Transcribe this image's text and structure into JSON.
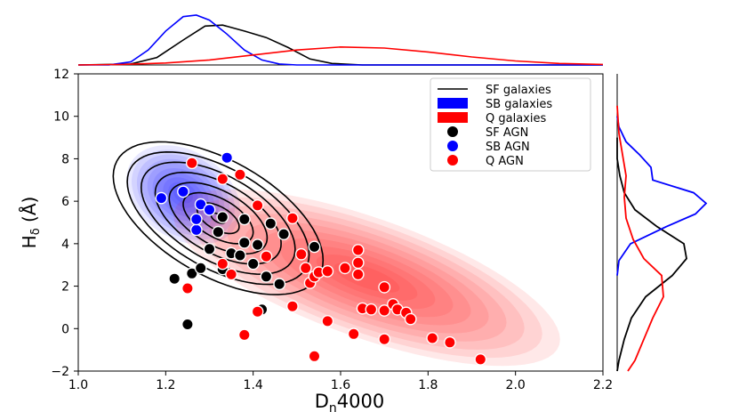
{
  "chart_data": {
    "type": "scatter",
    "xlabel": "D",
    "xlabel_sub": "n",
    "xlabel_tail": "4000",
    "ylabel": "H",
    "ylabel_sub": "δ",
    "ylabel_tail": " (Å)",
    "xlim": [
      1.0,
      2.2
    ],
    "ylim": [
      -2,
      12
    ],
    "xticks": [
      1.0,
      1.2,
      1.4,
      1.6,
      1.8,
      2.0,
      2.2
    ],
    "xtick_labels": [
      "1.0",
      "1.2",
      "1.4",
      "1.6",
      "1.8",
      "2.0",
      "2.2"
    ],
    "yticks": [
      -2,
      0,
      2,
      4,
      6,
      8,
      10,
      12
    ],
    "ytick_labels": [
      "−2",
      "0",
      "2",
      "4",
      "6",
      "8",
      "10",
      "12"
    ],
    "legend_position": "top-right",
    "legend": [
      {
        "label": "SF galaxies",
        "kind": "line",
        "color": "#000000"
      },
      {
        "label": "SB galaxies",
        "kind": "patch",
        "color": "#0000ff"
      },
      {
        "label": "Q galaxies",
        "kind": "patch",
        "color": "#ff0000"
      },
      {
        "label": "SF AGN",
        "kind": "marker",
        "color": "#000000"
      },
      {
        "label": "SB AGN",
        "kind": "marker",
        "color": "#0000ff"
      },
      {
        "label": "Q AGN",
        "kind": "marker",
        "color": "#ff0000"
      }
    ],
    "colors": {
      "SF": "#000000",
      "SB": "#0000ff",
      "Q": "#ff0000"
    },
    "density_regions": [
      {
        "name": "SB galaxies",
        "color": "#0000ff",
        "center": [
          1.24,
          6.3
        ],
        "sigma": [
          0.05,
          0.9
        ],
        "rho": -0.3
      },
      {
        "name": "Q galaxies",
        "color": "#ff0000",
        "center": [
          1.66,
          2.4
        ],
        "sigma": [
          0.17,
          1.6
        ],
        "rho": -0.7
      }
    ],
    "sf_contours": {
      "center": [
        1.32,
        5.2
      ],
      "sigma": [
        0.08,
        1.2
      ],
      "rho": -0.55,
      "levels": [
        0.6,
        1.0,
        1.4,
        1.8,
        2.2,
        2.6,
        3.0,
        3.4
      ]
    },
    "series": [
      {
        "name": "SF AGN",
        "color": "#000000",
        "points": [
          [
            1.25,
            0.2
          ],
          [
            1.22,
            2.35
          ],
          [
            1.26,
            2.6
          ],
          [
            1.28,
            2.85
          ],
          [
            1.3,
            3.75
          ],
          [
            1.32,
            4.55
          ],
          [
            1.33,
            5.25
          ],
          [
            1.35,
            3.55
          ],
          [
            1.37,
            3.45
          ],
          [
            1.38,
            4.05
          ],
          [
            1.4,
            3.05
          ],
          [
            1.41,
            3.95
          ],
          [
            1.43,
            2.45
          ],
          [
            1.44,
            4.95
          ],
          [
            1.47,
            4.45
          ],
          [
            1.38,
            5.15
          ],
          [
            1.46,
            2.1
          ],
          [
            1.54,
            3.85
          ],
          [
            1.42,
            0.9
          ],
          [
            1.33,
            2.8
          ]
        ]
      },
      {
        "name": "SB AGN",
        "color": "#0000ff",
        "points": [
          [
            1.19,
            6.15
          ],
          [
            1.24,
            6.45
          ],
          [
            1.27,
            4.65
          ],
          [
            1.28,
            5.85
          ],
          [
            1.3,
            5.6
          ],
          [
            1.27,
            5.15
          ],
          [
            1.34,
            8.05
          ]
        ]
      },
      {
        "name": "Q AGN",
        "color": "#ff0000",
        "points": [
          [
            1.26,
            7.8
          ],
          [
            1.33,
            7.05
          ],
          [
            1.37,
            7.25
          ],
          [
            1.41,
            5.8
          ],
          [
            1.49,
            5.2
          ],
          [
            1.33,
            3.05
          ],
          [
            1.35,
            2.55
          ],
          [
            1.43,
            3.4
          ],
          [
            1.25,
            1.9
          ],
          [
            1.41,
            0.8
          ],
          [
            1.38,
            -0.3
          ],
          [
            1.49,
            1.05
          ],
          [
            1.51,
            3.5
          ],
          [
            1.52,
            2.85
          ],
          [
            1.53,
            2.15
          ],
          [
            1.54,
            2.45
          ],
          [
            1.55,
            2.65
          ],
          [
            1.57,
            0.35
          ],
          [
            1.57,
            2.7
          ],
          [
            1.61,
            2.85
          ],
          [
            1.64,
            3.7
          ],
          [
            1.64,
            3.1
          ],
          [
            1.64,
            2.55
          ],
          [
            1.63,
            -0.25
          ],
          [
            1.65,
            0.95
          ],
          [
            1.67,
            0.9
          ],
          [
            1.7,
            1.95
          ],
          [
            1.7,
            -0.5
          ],
          [
            1.7,
            0.85
          ],
          [
            1.72,
            1.15
          ],
          [
            1.73,
            0.9
          ],
          [
            1.75,
            0.75
          ],
          [
            1.76,
            0.45
          ],
          [
            1.81,
            -0.45
          ],
          [
            1.85,
            -0.65
          ],
          [
            1.92,
            -1.45
          ],
          [
            1.54,
            -1.3
          ]
        ]
      }
    ],
    "marginal_top": {
      "description": "D_n4000 marginal KDE",
      "curves": [
        {
          "name": "SF",
          "color": "#000000",
          "points": [
            [
              1.0,
              0.0
            ],
            [
              1.12,
              0.02
            ],
            [
              1.18,
              0.15
            ],
            [
              1.24,
              0.5
            ],
            [
              1.29,
              0.78
            ],
            [
              1.33,
              0.8
            ],
            [
              1.38,
              0.68
            ],
            [
              1.43,
              0.55
            ],
            [
              1.48,
              0.35
            ],
            [
              1.53,
              0.12
            ],
            [
              1.58,
              0.03
            ],
            [
              1.65,
              0.0
            ],
            [
              2.2,
              0.0
            ]
          ]
        },
        {
          "name": "SB",
          "color": "#0000ff",
          "points": [
            [
              1.0,
              0.0
            ],
            [
              1.07,
              0.0
            ],
            [
              1.12,
              0.06
            ],
            [
              1.16,
              0.3
            ],
            [
              1.2,
              0.68
            ],
            [
              1.24,
              0.97
            ],
            [
              1.27,
              1.0
            ],
            [
              1.3,
              0.9
            ],
            [
              1.34,
              0.62
            ],
            [
              1.38,
              0.3
            ],
            [
              1.42,
              0.1
            ],
            [
              1.46,
              0.02
            ],
            [
              1.5,
              0.0
            ],
            [
              2.2,
              0.0
            ]
          ]
        },
        {
          "name": "Q",
          "color": "#ff0000",
          "points": [
            [
              1.0,
              0.0
            ],
            [
              1.1,
              0.01
            ],
            [
              1.2,
              0.04
            ],
            [
              1.3,
              0.1
            ],
            [
              1.4,
              0.2
            ],
            [
              1.5,
              0.3
            ],
            [
              1.6,
              0.36
            ],
            [
              1.7,
              0.34
            ],
            [
              1.8,
              0.26
            ],
            [
              1.9,
              0.16
            ],
            [
              2.0,
              0.08
            ],
            [
              2.1,
              0.03
            ],
            [
              2.2,
              0.01
            ]
          ]
        }
      ]
    },
    "marginal_right": {
      "description": "H_delta marginal KDE",
      "curves": [
        {
          "name": "SF",
          "color": "#000000",
          "points": [
            [
              -2.0,
              0.0
            ],
            [
              -1.5,
              0.02
            ],
            [
              -0.5,
              0.08
            ],
            [
              0.5,
              0.16
            ],
            [
              1.5,
              0.32
            ],
            [
              2.5,
              0.62
            ],
            [
              3.3,
              0.78
            ],
            [
              4.0,
              0.75
            ],
            [
              4.8,
              0.45
            ],
            [
              5.6,
              0.2
            ],
            [
              6.4,
              0.08
            ],
            [
              7.2,
              0.03
            ],
            [
              8.0,
              0.0
            ],
            [
              9.0,
              0.0
            ]
          ]
        },
        {
          "name": "SB",
          "color": "#0000ff",
          "points": [
            [
              2.5,
              0.0
            ],
            [
              3.2,
              0.02
            ],
            [
              4.0,
              0.15
            ],
            [
              4.8,
              0.55
            ],
            [
              5.4,
              0.88
            ],
            [
              5.9,
              1.0
            ],
            [
              6.4,
              0.86
            ],
            [
              7.0,
              0.4
            ],
            [
              7.6,
              0.38
            ],
            [
              8.2,
              0.25
            ],
            [
              8.8,
              0.1
            ],
            [
              9.5,
              0.02
            ],
            [
              10.0,
              0.0
            ]
          ]
        },
        {
          "name": "Q",
          "color": "#ff0000",
          "points": [
            [
              -2.0,
              0.12
            ],
            [
              -1.5,
              0.2
            ],
            [
              -0.5,
              0.3
            ],
            [
              0.5,
              0.4
            ],
            [
              1.5,
              0.52
            ],
            [
              2.5,
              0.5
            ],
            [
              3.3,
              0.3
            ],
            [
              4.2,
              0.18
            ],
            [
              5.2,
              0.1
            ],
            [
              6.2,
              0.08
            ],
            [
              7.2,
              0.1
            ],
            [
              8.2,
              0.06
            ],
            [
              9.2,
              0.02
            ],
            [
              10.5,
              0.0
            ]
          ]
        }
      ]
    }
  }
}
